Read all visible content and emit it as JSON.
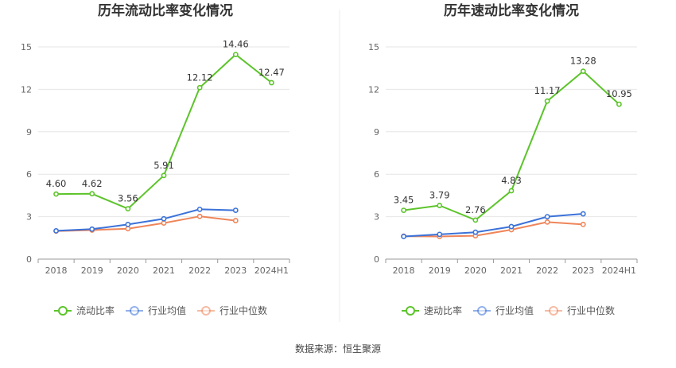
{
  "source": "数据来源：恒生聚源",
  "colors": {
    "main": "#5cc42a",
    "avg": "#3b72d9",
    "median": "#ef8559",
    "grid": "#e6e6e6",
    "axis": "#999999"
  },
  "chart_data": [
    {
      "type": "line",
      "title": "历年流动比率变化情况",
      "categories": [
        "2018",
        "2019",
        "2020",
        "2021",
        "2022",
        "2023",
        "2024H1"
      ],
      "yticks": [
        "0",
        "3",
        "6",
        "9",
        "12",
        "15"
      ],
      "ylim": [
        0,
        15
      ],
      "grid": true,
      "legend_position": "bottom",
      "series": [
        {
          "name": "流动比率",
          "values": [
            4.6,
            4.62,
            3.56,
            5.91,
            12.12,
            14.46,
            12.47
          ],
          "labels": [
            "4.60",
            "4.62",
            "3.56",
            "5.91",
            "12.12",
            "14.46",
            "12.47"
          ]
        },
        {
          "name": "行业均值",
          "values": [
            2.0,
            2.12,
            2.45,
            2.85,
            3.52,
            3.45,
            null
          ]
        },
        {
          "name": "行业中位数",
          "values": [
            1.98,
            2.05,
            2.15,
            2.55,
            3.02,
            2.72,
            null
          ]
        }
      ]
    },
    {
      "type": "line",
      "title": "历年速动比率变化情况",
      "categories": [
        "2018",
        "2019",
        "2020",
        "2021",
        "2022",
        "2023",
        "2024H1"
      ],
      "yticks": [
        "0",
        "3",
        "6",
        "9",
        "12",
        "15"
      ],
      "ylim": [
        0,
        15
      ],
      "grid": true,
      "legend_position": "bottom",
      "series": [
        {
          "name": "速动比率",
          "values": [
            3.45,
            3.79,
            2.76,
            4.83,
            11.17,
            13.28,
            10.95
          ],
          "labels": [
            "3.45",
            "3.79",
            "2.76",
            "4.83",
            "11.17",
            "13.28",
            "10.95"
          ]
        },
        {
          "name": "行业均值",
          "values": [
            1.6,
            1.75,
            1.9,
            2.3,
            3.0,
            3.2,
            null
          ]
        },
        {
          "name": "行业中位数",
          "values": [
            1.62,
            1.6,
            1.65,
            2.08,
            2.62,
            2.45,
            null
          ]
        }
      ]
    }
  ]
}
